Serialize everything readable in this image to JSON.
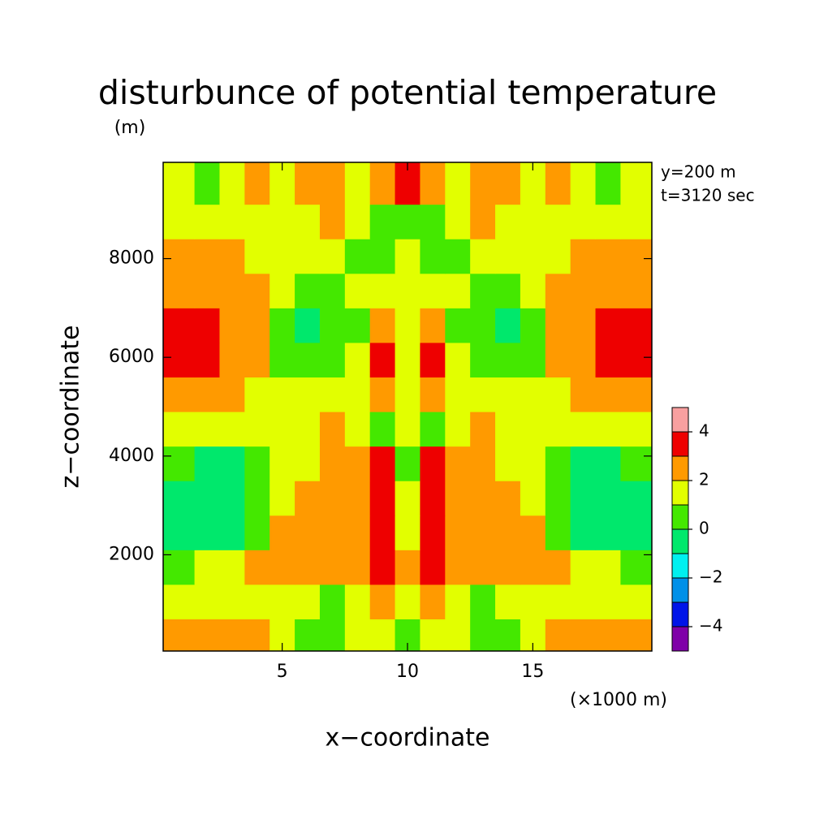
{
  "chart_data": {
    "type": "contour",
    "title": "disturbunce of potential temperature",
    "y_unit": "(m)",
    "x_label": "x−coordinate",
    "y_label": "z−coordinate",
    "x_unit": "(×1000 m)",
    "annotations": [
      "y=200 m",
      "t=3120 sec"
    ],
    "xlim": [
      0.25,
      19.75
    ],
    "ylim": [
      50,
      9950
    ],
    "xticks": [
      5,
      10,
      15
    ],
    "yticks": [
      2000,
      4000,
      6000,
      8000
    ],
    "x": [
      1,
      2,
      3,
      4,
      5,
      6,
      7,
      8,
      9,
      10,
      11,
      12,
      13,
      14,
      15,
      16,
      17,
      18,
      19
    ],
    "y": [
      350,
      1050,
      1750,
      2450,
      3150,
      3850,
      4550,
      5250,
      5950,
      6650,
      7350,
      8050,
      8750,
      9450
    ],
    "values": [
      [
        2.5,
        2.5,
        2.5,
        2.5,
        1.5,
        0.5,
        0.5,
        1.5,
        1.5,
        0.5,
        1.5,
        1.5,
        0.5,
        0.5,
        1.5,
        2.5,
        2.5,
        2.5,
        2.5
      ],
      [
        1.5,
        1.5,
        1.5,
        1.5,
        1.5,
        1.5,
        0.5,
        1.5,
        2.5,
        1.5,
        2.5,
        1.5,
        0.5,
        1.5,
        1.5,
        1.5,
        1.5,
        1.5,
        1.5
      ],
      [
        0.5,
        1.5,
        1.5,
        2.5,
        2.5,
        2.5,
        2.5,
        2.5,
        3.5,
        2.5,
        3.5,
        2.5,
        2.5,
        2.5,
        2.5,
        2.5,
        1.5,
        1.5,
        0.5
      ],
      [
        -0.5,
        -0.5,
        -0.5,
        0.5,
        2.5,
        2.5,
        2.5,
        2.5,
        3.5,
        1.5,
        3.5,
        2.5,
        2.5,
        2.5,
        2.5,
        0.5,
        -0.5,
        -0.5,
        -0.5
      ],
      [
        -0.5,
        -0.5,
        -0.5,
        0.5,
        1.5,
        2.5,
        2.5,
        2.5,
        3.5,
        1.5,
        3.5,
        2.5,
        2.5,
        2.5,
        1.5,
        0.5,
        -0.5,
        -0.5,
        -0.5
      ],
      [
        0.5,
        -0.5,
        -0.5,
        0.5,
        1.5,
        1.5,
        2.5,
        2.5,
        3.5,
        0.5,
        3.5,
        2.5,
        2.5,
        1.5,
        1.5,
        0.5,
        -0.5,
        -0.5,
        0.5
      ],
      [
        1.5,
        1.5,
        1.5,
        1.5,
        1.5,
        1.5,
        2.5,
        1.5,
        0.5,
        1.5,
        0.5,
        1.5,
        2.5,
        1.5,
        1.5,
        1.5,
        1.5,
        1.5,
        1.5
      ],
      [
        2.5,
        2.5,
        2.5,
        1.5,
        1.5,
        1.5,
        1.5,
        1.5,
        2.5,
        1.5,
        2.5,
        1.5,
        1.5,
        1.5,
        1.5,
        1.5,
        2.5,
        2.5,
        2.5
      ],
      [
        3.5,
        3.5,
        2.5,
        2.5,
        0.5,
        0.5,
        0.5,
        1.5,
        3.5,
        1.5,
        3.5,
        1.5,
        0.5,
        0.5,
        0.5,
        2.5,
        2.5,
        3.5,
        3.5
      ],
      [
        3.5,
        3.5,
        2.5,
        2.5,
        0.5,
        -0.5,
        0.5,
        0.5,
        2.5,
        1.5,
        2.5,
        0.5,
        0.5,
        -0.5,
        0.5,
        2.5,
        2.5,
        3.5,
        3.5
      ],
      [
        2.5,
        2.5,
        2.5,
        2.5,
        1.5,
        0.5,
        0.5,
        1.5,
        1.5,
        1.5,
        1.5,
        1.5,
        0.5,
        0.5,
        1.5,
        2.5,
        2.5,
        2.5,
        2.5
      ],
      [
        2.5,
        2.5,
        2.5,
        1.5,
        1.5,
        1.5,
        1.5,
        0.5,
        0.5,
        1.5,
        0.5,
        0.5,
        1.5,
        1.5,
        1.5,
        1.5,
        2.5,
        2.5,
        2.5
      ],
      [
        1.5,
        1.5,
        1.5,
        1.5,
        1.5,
        1.5,
        2.5,
        1.5,
        0.5,
        0.5,
        0.5,
        1.5,
        2.5,
        1.5,
        1.5,
        1.5,
        1.5,
        1.5,
        1.5
      ],
      [
        1.5,
        0.5,
        1.5,
        2.5,
        1.5,
        2.5,
        2.5,
        1.5,
        2.5,
        3.5,
        2.5,
        1.5,
        2.5,
        2.5,
        1.5,
        2.5,
        1.5,
        0.5,
        1.5
      ]
    ],
    "levels": [
      -5,
      -4,
      -3,
      -2,
      -1,
      0,
      1,
      2,
      3,
      4,
      5
    ],
    "colors": [
      "#7f00a8",
      "#0014e8",
      "#0090e8",
      "#00f0f0",
      "#00e86c",
      "#44e800",
      "#e2ff00",
      "#ff9a00",
      "#ee0000",
      "#f8a0a0"
    ],
    "colorbar_ticks": [
      {
        "value": -4,
        "label": "−4"
      },
      {
        "value": -2,
        "label": "−2"
      },
      0,
      2,
      4
    ]
  }
}
